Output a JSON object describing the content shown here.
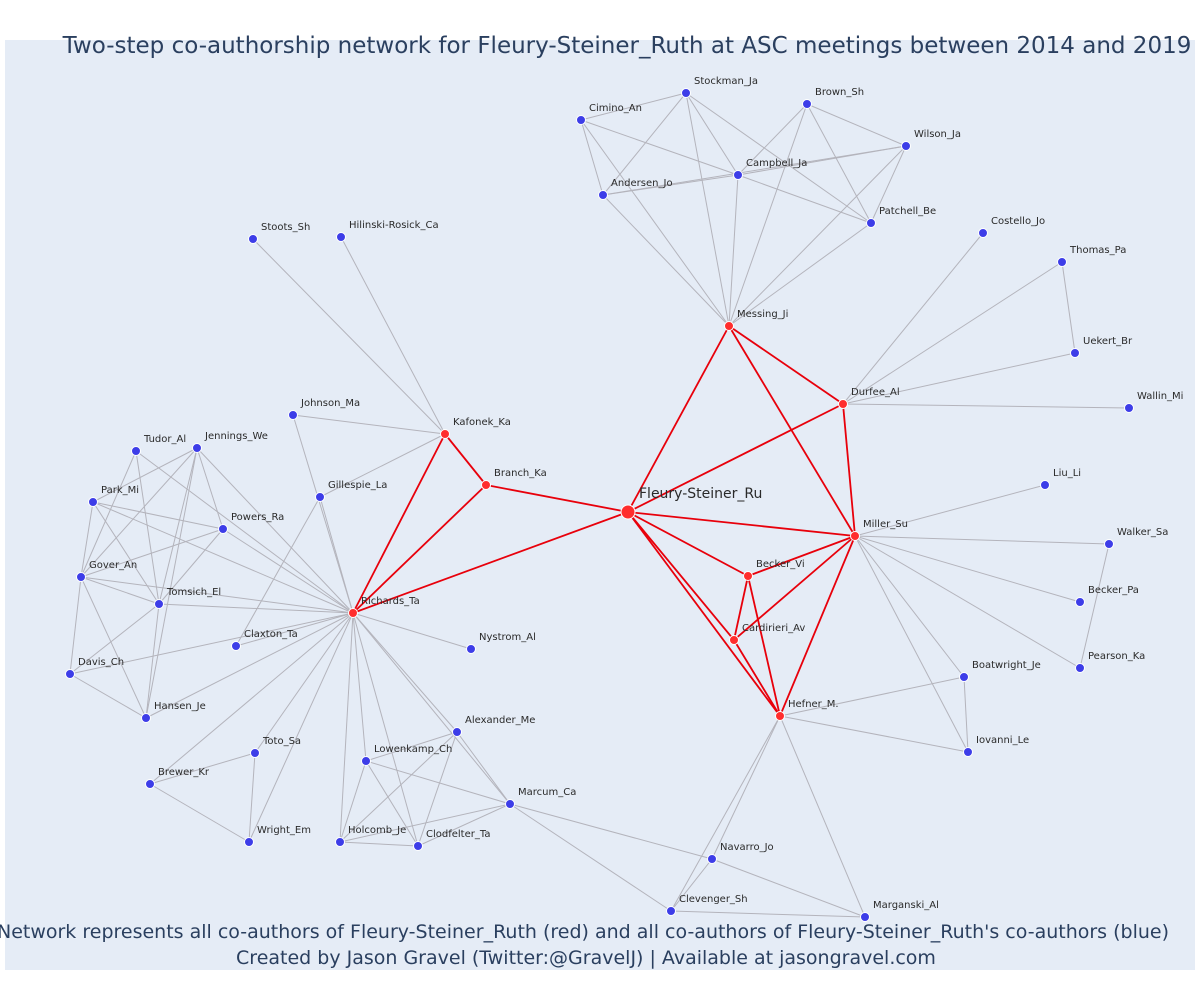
{
  "title": "Two-step co-authorship network for Fleury-Steiner_Ruth at ASC meetings between 2014 and 2019",
  "caption_line1": "Network represents all co-authors of Fleury-Steiner_Ruth (red) and all co-authors of Fleury-Steiner_Ruth's co-authors (blue)",
  "caption_line2": "Created by Jason Gravel (Twitter:@GravelJ) | Available at jasongravel.com",
  "colors": {
    "background": "#e5ecf6",
    "red_node": "#ff2d2d",
    "blue_node": "#3d3de8",
    "red_edge": "#e8000b",
    "gray_edge": "#b4b4bc",
    "text": "#2a3f5f"
  },
  "center": "Fleury-Steiner_Ru",
  "red_nodes": [
    "Fleury-Steiner_Ru",
    "Messing_Ji",
    "Durfee_Al",
    "Miller_Su",
    "Becker_Vi",
    "Cardirieri_Av",
    "Hefner_M.",
    "Branch_Ka",
    "Kafonek_Ka",
    "Richards_Ta"
  ],
  "nodes": [
    {
      "id": "Fleury-Steiner_Ru",
      "label": "Fleury-Steiner_Ru"
    },
    {
      "id": "Messing_Ji",
      "label": "Messing_Ji"
    },
    {
      "id": "Durfee_Al",
      "label": "Durfee_Al"
    },
    {
      "id": "Miller_Su",
      "label": "Miller_Su"
    },
    {
      "id": "Becker_Vi",
      "label": "Becker_Vi"
    },
    {
      "id": "Cardirieri_Av",
      "label": "Cardirieri_Av"
    },
    {
      "id": "Hefner_M.",
      "label": "Hefner_M."
    },
    {
      "id": "Branch_Ka",
      "label": "Branch_Ka"
    },
    {
      "id": "Kafonek_Ka",
      "label": "Kafonek_Ka"
    },
    {
      "id": "Richards_Ta",
      "label": "Richards_Ta"
    },
    {
      "id": "Stockman_Ja",
      "label": "Stockman_Ja"
    },
    {
      "id": "Cimino_An",
      "label": "Cimino_An"
    },
    {
      "id": "Brown_Sh",
      "label": "Brown_Sh"
    },
    {
      "id": "Wilson_Ja",
      "label": "Wilson_Ja"
    },
    {
      "id": "Campbell_Ja",
      "label": "Campbell_Ja"
    },
    {
      "id": "Andersen_Jo",
      "label": "Andersen_Jo"
    },
    {
      "id": "Patchell_Be",
      "label": "Patchell_Be"
    },
    {
      "id": "Costello_Jo",
      "label": "Costello_Jo"
    },
    {
      "id": "Thomas_Pa",
      "label": "Thomas_Pa"
    },
    {
      "id": "Uekert_Br",
      "label": "Uekert_Br"
    },
    {
      "id": "Wallin_Mi",
      "label": "Wallin_Mi"
    },
    {
      "id": "Liu_Li",
      "label": "Liu_Li"
    },
    {
      "id": "Walker_Sa",
      "label": "Walker_Sa"
    },
    {
      "id": "Becker_Pa",
      "label": "Becker_Pa"
    },
    {
      "id": "Pearson_Ka",
      "label": "Pearson_Ka"
    },
    {
      "id": "Boatwright_Je",
      "label": "Boatwright_Je"
    },
    {
      "id": "Iovanni_Le",
      "label": "Iovanni_Le"
    },
    {
      "id": "Navarro_Jo",
      "label": "Navarro_Jo"
    },
    {
      "id": "Clevenger_Sh",
      "label": "Clevenger_Sh"
    },
    {
      "id": "Marganski_Al",
      "label": "Marganski_Al"
    },
    {
      "id": "Stoots_Sh",
      "label": "Stoots_Sh"
    },
    {
      "id": "Hilinski-Rosick_Ca",
      "label": "Hilinski-Rosick_Ca"
    },
    {
      "id": "Johnson_Ma",
      "label": "Johnson_Ma"
    },
    {
      "id": "Gillespie_La",
      "label": "Gillespie_La"
    },
    {
      "id": "Tudor_Al",
      "label": "Tudor_Al"
    },
    {
      "id": "Jennings_We",
      "label": "Jennings_We"
    },
    {
      "id": "Park_Mi",
      "label": "Park_Mi"
    },
    {
      "id": "Powers_Ra",
      "label": "Powers_Ra"
    },
    {
      "id": "Gover_An",
      "label": "Gover_An"
    },
    {
      "id": "Tomsich_El",
      "label": "Tomsich_El"
    },
    {
      "id": "Claxton_Ta",
      "label": "Claxton_Ta"
    },
    {
      "id": "Nystrom_Al",
      "label": "Nystrom_Al"
    },
    {
      "id": "Davis_Ch",
      "label": "Davis_Ch"
    },
    {
      "id": "Hansen_Je",
      "label": "Hansen_Je"
    },
    {
      "id": "Alexander_Me",
      "label": "Alexander_Me"
    },
    {
      "id": "Lowenkamp_Ch",
      "label": "Lowenkamp_Ch"
    },
    {
      "id": "Toto_Sa",
      "label": "Toto_Sa"
    },
    {
      "id": "Brewer_Kr",
      "label": "Brewer_Kr"
    },
    {
      "id": "Marcum_Ca",
      "label": "Marcum_Ca"
    },
    {
      "id": "Wright_Em",
      "label": "Wright_Em"
    },
    {
      "id": "Holcomb_Je",
      "label": "Holcomb_Je"
    },
    {
      "id": "Clodfelter_Ta",
      "label": "Clodfelter_Ta"
    }
  ],
  "edges": [
    [
      "Fleury-Steiner_Ru",
      "Messing_Ji"
    ],
    [
      "Fleury-Steiner_Ru",
      "Durfee_Al"
    ],
    [
      "Fleury-Steiner_Ru",
      "Miller_Su"
    ],
    [
      "Fleury-Steiner_Ru",
      "Becker_Vi"
    ],
    [
      "Fleury-Steiner_Ru",
      "Cardirieri_Av"
    ],
    [
      "Fleury-Steiner_Ru",
      "Hefner_M."
    ],
    [
      "Fleury-Steiner_Ru",
      "Branch_Ka"
    ],
    [
      "Fleury-Steiner_Ru",
      "Richards_Ta"
    ],
    [
      "Messing_Ji",
      "Durfee_Al"
    ],
    [
      "Messing_Ji",
      "Miller_Su"
    ],
    [
      "Durfee_Al",
      "Miller_Su"
    ],
    [
      "Miller_Su",
      "Becker_Vi"
    ],
    [
      "Miller_Su",
      "Cardirieri_Av"
    ],
    [
      "Miller_Su",
      "Hefner_M."
    ],
    [
      "Becker_Vi",
      "Cardirieri_Av"
    ],
    [
      "Becker_Vi",
      "Hefner_M."
    ],
    [
      "Cardirieri_Av",
      "Hefner_M."
    ],
    [
      "Kafonek_Ka",
      "Branch_Ka"
    ],
    [
      "Kafonek_Ka",
      "Richards_Ta"
    ],
    [
      "Branch_Ka",
      "Richards_Ta"
    ],
    [
      "Messing_Ji",
      "Stockman_Ja"
    ],
    [
      "Messing_Ji",
      "Cimino_An"
    ],
    [
      "Messing_Ji",
      "Brown_Sh"
    ],
    [
      "Messing_Ji",
      "Wilson_Ja"
    ],
    [
      "Messing_Ji",
      "Campbell_Ja"
    ],
    [
      "Messing_Ji",
      "Andersen_Jo"
    ],
    [
      "Messing_Ji",
      "Patchell_Be"
    ],
    [
      "Cimino_An",
      "Stockman_Ja"
    ],
    [
      "Cimino_An",
      "Andersen_Jo"
    ],
    [
      "Cimino_An",
      "Campbell_Ja"
    ],
    [
      "Stockman_Ja",
      "Andersen_Jo"
    ],
    [
      "Stockman_Ja",
      "Campbell_Ja"
    ],
    [
      "Stockman_Ja",
      "Patchell_Be"
    ],
    [
      "Andersen_Jo",
      "Campbell_Ja"
    ],
    [
      "Brown_Sh",
      "Campbell_Ja"
    ],
    [
      "Brown_Sh",
      "Wilson_Ja"
    ],
    [
      "Brown_Sh",
      "Patchell_Be"
    ],
    [
      "Campbell_Ja",
      "Wilson_Ja"
    ],
    [
      "Campbell_Ja",
      "Patchell_Be"
    ],
    [
      "Wilson_Ja",
      "Patchell_Be"
    ],
    [
      "Andersen_Jo",
      "Wilson_Ja"
    ],
    [
      "Durfee_Al",
      "Costello_Jo"
    ],
    [
      "Durfee_Al",
      "Thomas_Pa"
    ],
    [
      "Durfee_Al",
      "Uekert_Br"
    ],
    [
      "Durfee_Al",
      "Wallin_Mi"
    ],
    [
      "Thomas_Pa",
      "Uekert_Br"
    ],
    [
      "Miller_Su",
      "Liu_Li"
    ],
    [
      "Miller_Su",
      "Walker_Sa"
    ],
    [
      "Miller_Su",
      "Becker_Pa"
    ],
    [
      "Miller_Su",
      "Pearson_Ka"
    ],
    [
      "Miller_Su",
      "Boatwright_Je"
    ],
    [
      "Miller_Su",
      "Iovanni_Le"
    ],
    [
      "Walker_Sa",
      "Pearson_Ka"
    ],
    [
      "Boatwright_Je",
      "Iovanni_Le"
    ],
    [
      "Hefner_M.",
      "Boatwright_Je"
    ],
    [
      "Hefner_M.",
      "Iovanni_Le"
    ],
    [
      "Hefner_M.",
      "Navarro_Jo"
    ],
    [
      "Hefner_M.",
      "Clevenger_Sh"
    ],
    [
      "Hefner_M.",
      "Marganski_Al"
    ],
    [
      "Navarro_Jo",
      "Clevenger_Sh"
    ],
    [
      "Navarro_Jo",
      "Marganski_Al"
    ],
    [
      "Clevenger_Sh",
      "Marganski_Al"
    ],
    [
      "Marcum_Ca",
      "Clevenger_Sh"
    ],
    [
      "Marcum_Ca",
      "Navarro_Jo"
    ],
    [
      "Kafonek_Ka",
      "Stoots_Sh"
    ],
    [
      "Kafonek_Ka",
      "Hilinski-Rosick_Ca"
    ],
    [
      "Kafonek_Ka",
      "Johnson_Ma"
    ],
    [
      "Kafonek_Ka",
      "Gillespie_La"
    ],
    [
      "Richards_Ta",
      "Johnson_Ma"
    ],
    [
      "Richards_Ta",
      "Gillespie_La"
    ],
    [
      "Richards_Ta",
      "Tudor_Al"
    ],
    [
      "Richards_Ta",
      "Jennings_We"
    ],
    [
      "Richards_Ta",
      "Park_Mi"
    ],
    [
      "Richards_Ta",
      "Powers_Ra"
    ],
    [
      "Richards_Ta",
      "Gover_An"
    ],
    [
      "Richards_Ta",
      "Tomsich_El"
    ],
    [
      "Richards_Ta",
      "Claxton_Ta"
    ],
    [
      "Richards_Ta",
      "Nystrom_Al"
    ],
    [
      "Richards_Ta",
      "Davis_Ch"
    ],
    [
      "Richards_Ta",
      "Hansen_Je"
    ],
    [
      "Richards_Ta",
      "Alexander_Me"
    ],
    [
      "Richards_Ta",
      "Lowenkamp_Ch"
    ],
    [
      "Richards_Ta",
      "Toto_Sa"
    ],
    [
      "Richards_Ta",
      "Brewer_Kr"
    ],
    [
      "Richards_Ta",
      "Marcum_Ca"
    ],
    [
      "Richards_Ta",
      "Wright_Em"
    ],
    [
      "Richards_Ta",
      "Holcomb_Je"
    ],
    [
      "Richards_Ta",
      "Clodfelter_Ta"
    ],
    [
      "Gillespie_La",
      "Claxton_Ta"
    ],
    [
      "Tudor_Al",
      "Gover_An"
    ],
    [
      "Tudor_Al",
      "Tomsich_El"
    ],
    [
      "Jennings_We",
      "Park_Mi"
    ],
    [
      "Jennings_We",
      "Gover_An"
    ],
    [
      "Jennings_We",
      "Tomsich_El"
    ],
    [
      "Jennings_We",
      "Powers_Ra"
    ],
    [
      "Jennings_We",
      "Hansen_Je"
    ],
    [
      "Park_Mi",
      "Gover_An"
    ],
    [
      "Park_Mi",
      "Tomsich_El"
    ],
    [
      "Park_Mi",
      "Powers_Ra"
    ],
    [
      "Powers_Ra",
      "Gover_An"
    ],
    [
      "Powers_Ra",
      "Tomsich_El"
    ],
    [
      "Gover_An",
      "Tomsich_El"
    ],
    [
      "Gover_An",
      "Davis_Ch"
    ],
    [
      "Gover_An",
      "Hansen_Je"
    ],
    [
      "Tomsich_El",
      "Davis_Ch"
    ],
    [
      "Tomsich_El",
      "Hansen_Je"
    ],
    [
      "Davis_Ch",
      "Hansen_Je"
    ],
    [
      "Alexander_Me",
      "Lowenkamp_Ch"
    ],
    [
      "Alexander_Me",
      "Marcum_Ca"
    ],
    [
      "Alexander_Me",
      "Holcomb_Je"
    ],
    [
      "Alexander_Me",
      "Clodfelter_Ta"
    ],
    [
      "Lowenkamp_Ch",
      "Marcum_Ca"
    ],
    [
      "Lowenkamp_Ch",
      "Holcomb_Je"
    ],
    [
      "Lowenkamp_Ch",
      "Clodfelter_Ta"
    ],
    [
      "Marcum_Ca",
      "Holcomb_Je"
    ],
    [
      "Marcum_Ca",
      "Clodfelter_Ta"
    ],
    [
      "Holcomb_Je",
      "Clodfelter_Ta"
    ],
    [
      "Toto_Sa",
      "Brewer_Kr"
    ],
    [
      "Toto_Sa",
      "Wright_Em"
    ],
    [
      "Brewer_Kr",
      "Wright_Em"
    ]
  ]
}
